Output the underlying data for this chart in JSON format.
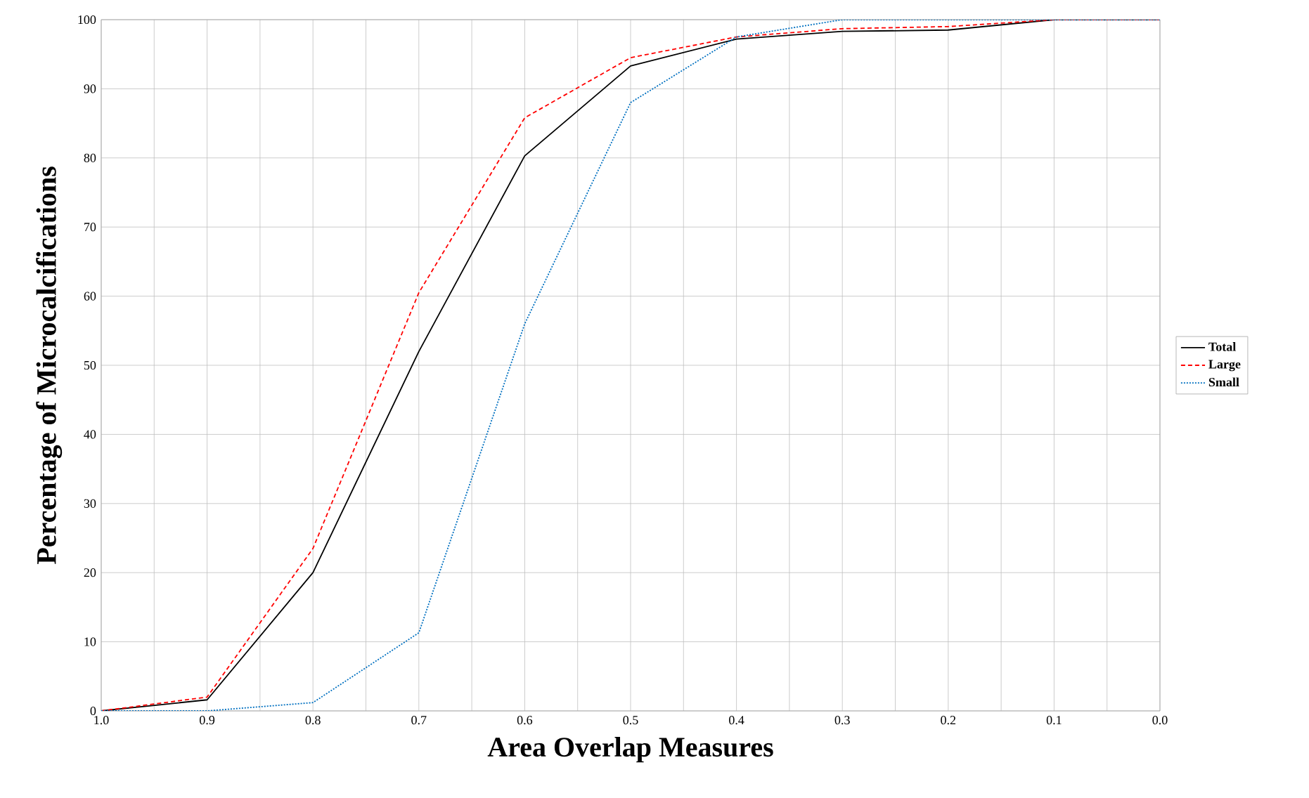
{
  "chart_data": {
    "type": "line",
    "xlabel": "Area  Overlap  Measures",
    "ylabel": "Percentage  of  Microcalcifications",
    "x": [
      1.0,
      0.9,
      0.8,
      0.7,
      0.6,
      0.5,
      0.4,
      0.3,
      0.2,
      0.1,
      0.0
    ],
    "series": [
      {
        "name": "Total",
        "color": "#000000",
        "line_style": "solid",
        "values": [
          0,
          1.6,
          20,
          52,
          80.3,
          93.3,
          97.2,
          98.3,
          98.5,
          100,
          100
        ]
      },
      {
        "name": "Large",
        "color": "#ff0000",
        "line_style": "dashed",
        "values": [
          0,
          2,
          23.5,
          60.5,
          85.8,
          94.5,
          97.5,
          98.7,
          99,
          100,
          100
        ]
      },
      {
        "name": "Small",
        "color": "#0070c0",
        "line_style": "dotted",
        "values": [
          0,
          0,
          1.2,
          11.3,
          56,
          88,
          97.5,
          100,
          100,
          100,
          100
        ]
      }
    ],
    "xlim": [
      1.0,
      0.0
    ],
    "xticks": [
      {
        "value": 1.0,
        "label": "1.0"
      },
      {
        "value": 0.95,
        "label": null
      },
      {
        "value": 0.9,
        "label": "0.9"
      },
      {
        "value": 0.85,
        "label": null
      },
      {
        "value": 0.8,
        "label": "0.8"
      },
      {
        "value": 0.75,
        "label": null
      },
      {
        "value": 0.7,
        "label": "0.7"
      },
      {
        "value": 0.65,
        "label": null
      },
      {
        "value": 0.6,
        "label": "0.6"
      },
      {
        "value": 0.55,
        "label": null
      },
      {
        "value": 0.5,
        "label": "0.5"
      },
      {
        "value": 0.45,
        "label": null
      },
      {
        "value": 0.4,
        "label": "0.4"
      },
      {
        "value": 0.35,
        "label": null
      },
      {
        "value": 0.3,
        "label": "0.3"
      },
      {
        "value": 0.25,
        "label": null
      },
      {
        "value": 0.2,
        "label": "0.2"
      },
      {
        "value": 0.15,
        "label": null
      },
      {
        "value": 0.1,
        "label": "0.1"
      },
      {
        "value": 0.05,
        "label": null
      },
      {
        "value": 0.0,
        "label": "0.0"
      }
    ],
    "ylim": [
      0,
      100
    ],
    "yticks": [
      0,
      10,
      20,
      30,
      40,
      50,
      60,
      70,
      80,
      90,
      100
    ],
    "grid": true,
    "legend": "right",
    "marker": "none"
  }
}
